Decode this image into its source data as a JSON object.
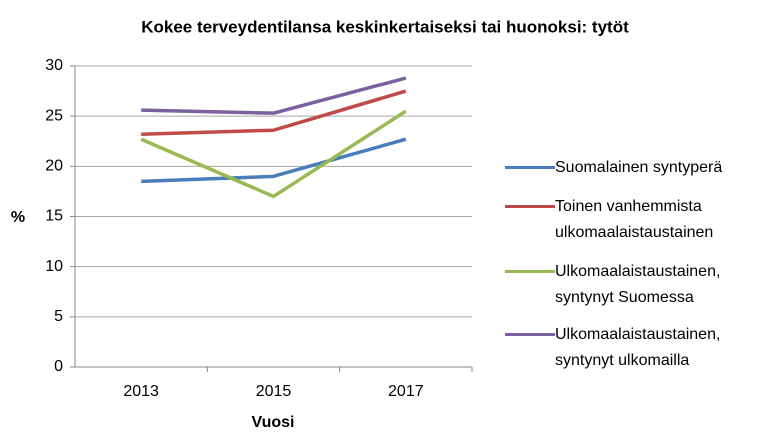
{
  "chart_data": {
    "type": "line",
    "title": "Kokee terveydentilansa keskinkertaiseksi tai huonoksi: tytöt",
    "x_label": "Vuosi",
    "y_label": "%",
    "categories": [
      "2013",
      "2015",
      "2017"
    ],
    "series": [
      {
        "name": "Suomalainen syntyperä",
        "color": "#4a7ebb",
        "values": [
          18.5,
          19.0,
          22.7
        ]
      },
      {
        "name": "Toinen vanhemmista ulkomaalaistaustainen",
        "color": "#be4b48",
        "values": [
          23.2,
          23.6,
          27.5
        ]
      },
      {
        "name": "Ulkomaalaistaustainen, syntynyt Suomessa",
        "color": "#98b954",
        "values": [
          22.7,
          17.0,
          25.5
        ]
      },
      {
        "name": "Ulkomaalaistaustainen, syntynyt ulkomailla",
        "color": "#7d60a0",
        "values": [
          25.6,
          25.3,
          28.8
        ]
      }
    ],
    "ylim": [
      0,
      30
    ],
    "yticks": [
      0,
      5,
      10,
      15,
      20,
      25,
      30
    ],
    "grid": true,
    "legend": "right"
  }
}
